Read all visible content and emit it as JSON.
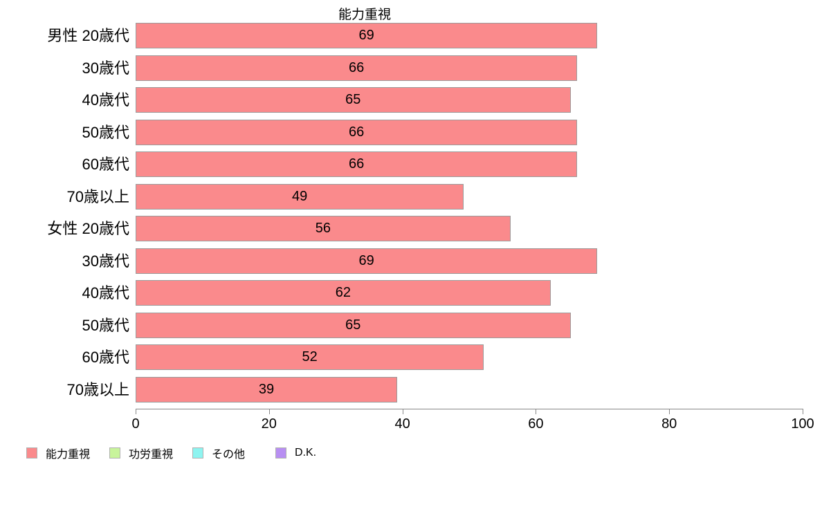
{
  "title": "能力重視",
  "chart_data": {
    "type": "bar",
    "orientation": "horizontal",
    "title": "能力重視",
    "categories": [
      "男性 20歳代",
      "30歳代",
      "40歳代",
      "50歳代",
      "60歳代",
      "70歳以上",
      "女性 20歳代",
      "30歳代",
      "40歳代",
      "50歳代",
      "60歳代",
      "70歳以上"
    ],
    "values": [
      69,
      66,
      65,
      66,
      66,
      49,
      56,
      69,
      62,
      65,
      52,
      39
    ],
    "xlabel": "",
    "ylabel": "",
    "xlim": [
      0,
      100
    ],
    "x_ticks": [
      0,
      20,
      40,
      60,
      80,
      100
    ],
    "grid": false,
    "value_labels": "centered inside bars",
    "bar_color": "#FA8A8C",
    "bar_border_color": "#9B9B9B",
    "legend_position": "bottom-left"
  },
  "legend": {
    "items": [
      {
        "label": "能力重視",
        "color": "#FA8A8C"
      },
      {
        "label": "功労重視",
        "color": "#C8F49B"
      },
      {
        "label": "その他",
        "color": "#8EF4F0"
      },
      {
        "label": "D.K.",
        "color": "#B88FF2"
      }
    ]
  }
}
